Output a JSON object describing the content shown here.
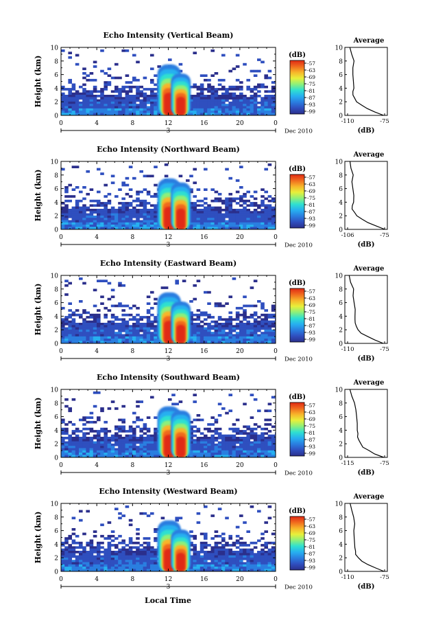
{
  "figure": {
    "xlabel_bottom": "Local Time",
    "date_label": "Dec 2010",
    "day_label": "3",
    "colorbar_unit": "(dB)",
    "colorbar_ticks": [
      "-57",
      "-63",
      "-69",
      "-75",
      "-81",
      "-87",
      "-93",
      "-99"
    ],
    "colors": {
      "field_low": "#2b2f8c",
      "colormap": [
        "#2b2f8c",
        "#2f4fbf",
        "#2a7ee0",
        "#27b0f0",
        "#2fe0d0",
        "#8df07a",
        "#e8f03a",
        "#f7b52a",
        "#f06a1e",
        "#e02a14"
      ]
    }
  },
  "chart_data": [
    {
      "type": "heatmap",
      "title": "Echo Intensity (Vertical Beam)",
      "ylabel": "Height (km)",
      "xlim": [
        0,
        24
      ],
      "ylim": [
        0,
        10
      ],
      "xticks": [
        "0",
        "4",
        "8",
        "12",
        "16",
        "20",
        "0"
      ],
      "yticks": [
        "0",
        "2",
        "4",
        "6",
        "8",
        "10"
      ],
      "colorbar": {
        "label": "(dB)",
        "range": [
          -99,
          -57
        ]
      },
      "profile": {
        "title": "Average",
        "xlabel": "(dB)",
        "xticks": [
          "-110",
          "-75"
        ],
        "yticks": [
          "0",
          "2",
          "4",
          "6",
          "8",
          "10"
        ],
        "xlim": [
          -110,
          -75
        ],
        "height_km": [
          0,
          0.5,
          1,
          1.5,
          2,
          2.5,
          3,
          3.5,
          4,
          5,
          6,
          7,
          8,
          9,
          10
        ],
        "value_db": [
          -76,
          -84,
          -91,
          -97,
          -101,
          -103,
          -105,
          -105,
          -104,
          -104,
          -105,
          -105,
          -104,
          -106,
          -108
        ]
      }
    },
    {
      "type": "heatmap",
      "title": "Echo Intensity (Northward Beam)",
      "ylabel": "Height (km)",
      "xlim": [
        0,
        24
      ],
      "ylim": [
        0,
        10
      ],
      "xticks": [
        "0",
        "4",
        "8",
        "12",
        "16",
        "20",
        "0"
      ],
      "yticks": [
        "0",
        "2",
        "4",
        "6",
        "8",
        "10"
      ],
      "colorbar": {
        "label": "(dB)",
        "range": [
          -99,
          -57
        ]
      },
      "profile": {
        "title": "Average",
        "xlabel": "(dB)",
        "xticks": [
          "-106",
          "-75"
        ],
        "yticks": [
          "0",
          "2",
          "4",
          "6",
          "8",
          "10"
        ],
        "xlim": [
          -106,
          -75
        ],
        "height_km": [
          0,
          0.5,
          1,
          1.5,
          2,
          2.5,
          3,
          3.5,
          4,
          5,
          6,
          7,
          8,
          9,
          10
        ],
        "value_db": [
          -75,
          -82,
          -89,
          -94,
          -98,
          -100,
          -102,
          -102,
          -101,
          -101,
          -102,
          -102,
          -101,
          -103,
          -104
        ]
      }
    },
    {
      "type": "heatmap",
      "title": "Echo Intensity (Eastward Beam)",
      "ylabel": "Height (km)",
      "xlim": [
        0,
        24
      ],
      "ylim": [
        0,
        10
      ],
      "xticks": [
        "0",
        "4",
        "8",
        "12",
        "16",
        "20",
        "0"
      ],
      "yticks": [
        "0",
        "2",
        "4",
        "6",
        "8",
        "10"
      ],
      "colorbar": {
        "label": "(dB)",
        "range": [
          -99,
          -57
        ]
      },
      "profile": {
        "title": "Average",
        "xlabel": "(dB)",
        "xticks": [
          "-110",
          "-75"
        ],
        "yticks": [
          "0",
          "2",
          "4",
          "6",
          "8",
          "10"
        ],
        "xlim": [
          -110,
          -75
        ],
        "height_km": [
          0,
          0.5,
          1,
          1.5,
          2,
          2.5,
          3,
          3.5,
          4,
          5,
          6,
          7,
          8,
          9,
          10
        ],
        "value_db": [
          -76,
          -84,
          -91,
          -97,
          -100,
          -102,
          -103,
          -103,
          -103,
          -103,
          -104,
          -105,
          -104,
          -107,
          -109
        ]
      }
    },
    {
      "type": "heatmap",
      "title": "Echo Intensity (Southward Beam)",
      "ylabel": "Height (km)",
      "xlim": [
        0,
        24
      ],
      "ylim": [
        0,
        10
      ],
      "xticks": [
        "0",
        "4",
        "8",
        "12",
        "16",
        "20",
        "0"
      ],
      "yticks": [
        "0",
        "2",
        "4",
        "6",
        "8",
        "10"
      ],
      "colorbar": {
        "label": "(dB)",
        "range": [
          -99,
          -57
        ]
      },
      "profile": {
        "title": "Average",
        "xlabel": "(dB)",
        "xticks": [
          "-115",
          "-75"
        ],
        "yticks": [
          "0",
          "2",
          "4",
          "6",
          "8",
          "10"
        ],
        "xlim": [
          -115,
          -75
        ],
        "height_km": [
          0,
          0.5,
          1,
          1.5,
          2,
          2.5,
          3,
          3.5,
          4,
          5,
          6,
          7,
          8,
          9,
          10
        ],
        "value_db": [
          -76,
          -86,
          -92,
          -98,
          -101,
          -103,
          -104,
          -104,
          -104,
          -104,
          -105,
          -106,
          -107,
          -110,
          -113
        ]
      }
    },
    {
      "type": "heatmap",
      "title": "Echo Intensity (Westward Beam)",
      "ylabel": "Height (km)",
      "xlim": [
        0,
        24
      ],
      "ylim": [
        0,
        10
      ],
      "xticks": [
        "0",
        "4",
        "8",
        "12",
        "16",
        "20",
        "0"
      ],
      "yticks": [
        "0",
        "2",
        "4",
        "6",
        "8",
        "10"
      ],
      "colorbar": {
        "label": "(dB)",
        "range": [
          -99,
          -57
        ]
      },
      "profile": {
        "title": "Average",
        "xlabel": "(dB)",
        "xticks": [
          "-110",
          "-75"
        ],
        "yticks": [
          "0",
          "2",
          "4",
          "6",
          "8",
          "10"
        ],
        "xlim": [
          -110,
          -75
        ],
        "height_km": [
          0,
          0.5,
          1,
          1.5,
          2,
          2.5,
          3,
          3.5,
          4,
          5,
          6,
          7,
          8,
          9,
          10
        ],
        "value_db": [
          -76,
          -84,
          -91,
          -97,
          -100,
          -102,
          -103,
          -103,
          -103,
          -104,
          -104,
          -103,
          -104,
          -106,
          -108
        ]
      }
    }
  ]
}
